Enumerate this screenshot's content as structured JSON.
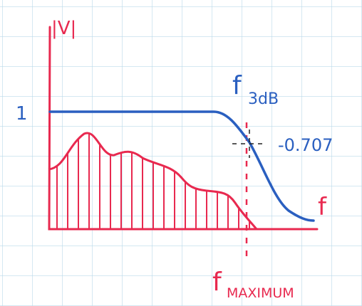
{
  "labels": {
    "y_axis": "|V|",
    "unity": "1",
    "f3db": {
      "f": "f",
      "sub": "3dB"
    },
    "level": "-0.707",
    "x_axis": "f",
    "fmax": {
      "f": "f",
      "sub": "MAXIMUM"
    }
  }
}
